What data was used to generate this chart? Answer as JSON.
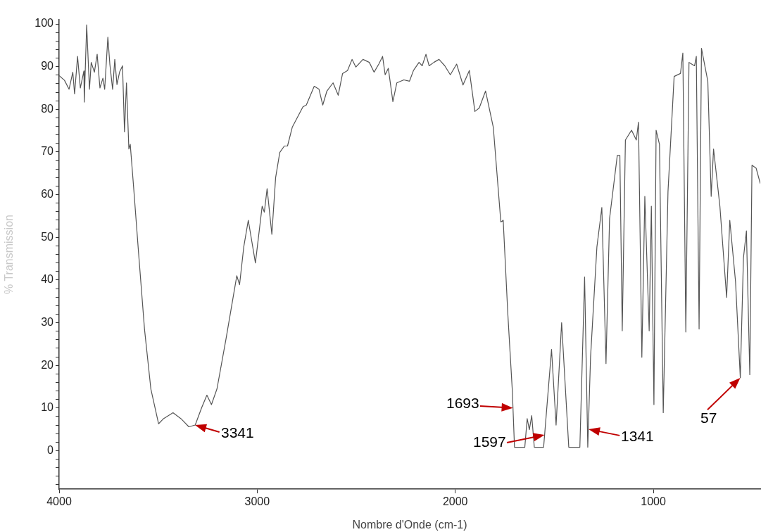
{
  "chart_data": {
    "type": "line",
    "xlabel": "Nombre d'Onde (cm-1)",
    "ylabel": "% Transmission",
    "xlim": [
      4000,
      460
    ],
    "xticks": [
      4000,
      3000,
      2000,
      1000
    ],
    "ylim": [
      -9,
      101
    ],
    "yticks": [
      {
        "value": -8,
        "label": null
      },
      {
        "value": -6,
        "label": null
      },
      {
        "value": -4,
        "label": null
      },
      {
        "value": -2,
        "label": null
      },
      0,
      {
        "value": 2,
        "label": null
      },
      {
        "value": 4,
        "label": null
      },
      {
        "value": 6,
        "label": null
      },
      {
        "value": 8,
        "label": null
      },
      10,
      {
        "value": 12,
        "label": null
      },
      {
        "value": 14,
        "label": null
      },
      {
        "value": 16,
        "label": null
      },
      {
        "value": 18,
        "label": null
      },
      20,
      {
        "value": 22,
        "label": null
      },
      {
        "value": 24,
        "label": null
      },
      {
        "value": 26,
        "label": null
      },
      {
        "value": 28,
        "label": null
      },
      30,
      {
        "value": 32,
        "label": null
      },
      {
        "value": 34,
        "label": null
      },
      {
        "value": 36,
        "label": null
      },
      {
        "value": 38,
        "label": null
      },
      40,
      {
        "value": 42,
        "label": null
      },
      {
        "value": 44,
        "label": null
      },
      {
        "value": 46,
        "label": null
      },
      {
        "value": 48,
        "label": null
      },
      50,
      {
        "value": 52,
        "label": null
      },
      {
        "value": 54,
        "label": null
      },
      {
        "value": 56,
        "label": null
      },
      {
        "value": 58,
        "label": null
      },
      60,
      {
        "value": 62,
        "label": null
      },
      {
        "value": 64,
        "label": null
      },
      {
        "value": 66,
        "label": null
      },
      {
        "value": 68,
        "label": null
      },
      70,
      {
        "value": 72,
        "label": null
      },
      {
        "value": 74,
        "label": null
      },
      {
        "value": 76,
        "label": null
      },
      {
        "value": 78,
        "label": null
      },
      80,
      {
        "value": 82,
        "label": null
      },
      {
        "value": 84,
        "label": null
      },
      {
        "value": 86,
        "label": null
      },
      {
        "value": 88,
        "label": null
      },
      90,
      {
        "value": 92,
        "label": null
      },
      {
        "value": 94,
        "label": null
      },
      {
        "value": 96,
        "label": null
      },
      {
        "value": 98,
        "label": null
      },
      100
    ],
    "grid": false,
    "legend": false,
    "x": [
      4000,
      3973,
      3950,
      3931,
      3922,
      3907,
      3893,
      3875,
      3873,
      3861,
      3847,
      3838,
      3822,
      3808,
      3794,
      3779,
      3770,
      3754,
      3744,
      3730,
      3719,
      3708,
      3695,
      3680,
      3670,
      3660,
      3648,
      3641,
      3624,
      3600,
      3569,
      3537,
      3498,
      3473,
      3425,
      3385,
      3345,
      3313,
      3281,
      3254,
      3231,
      3203,
      3157,
      3103,
      3089,
      3068,
      3045,
      3009,
      2975,
      2964,
      2950,
      2926,
      2907,
      2886,
      2863,
      2847,
      2823,
      2769,
      2752,
      2712,
      2688,
      2669,
      2648,
      2617,
      2591,
      2569,
      2544,
      2521,
      2502,
      2466,
      2434,
      2410,
      2386,
      2367,
      2354,
      2338,
      2315,
      2295,
      2260,
      2231,
      2211,
      2183,
      2167,
      2148,
      2132,
      2108,
      2082,
      2053,
      2025,
      1993,
      1961,
      1929,
      1901,
      1879,
      1847,
      1808,
      1770,
      1758,
      1735,
      1712,
      1701,
      1649,
      1637,
      1626,
      1614,
      1601,
      1554,
      1514,
      1491,
      1463,
      1427,
      1371,
      1347,
      1331,
      1317,
      1285,
      1260,
      1239,
      1221,
      1182,
      1169,
      1157,
      1141,
      1110,
      1086,
      1075,
      1058,
      1043,
      1021,
      1010,
      997,
      986,
      969,
      950,
      926,
      895,
      863,
      851,
      836,
      820,
      792,
      783,
      769,
      757,
      725,
      708,
      696,
      664,
      630,
      614,
      585,
      561,
      545,
      530,
      513,
      502,
      481,
      460
    ],
    "series": [
      {
        "color": "#555555",
        "values": [
          87.9,
          86.8,
          84.7,
          88.7,
          83.6,
          92.4,
          85,
          89,
          81.7,
          99.8,
          84.7,
          91,
          88.7,
          92.9,
          85,
          87.3,
          84.7,
          96.9,
          90.6,
          84.7,
          91.7,
          85.8,
          88.7,
          90.2,
          74.7,
          86.2,
          70.7,
          71.8,
          61.8,
          47,
          28.5,
          14.5,
          6.3,
          7.5,
          8.9,
          7.5,
          5.6,
          6,
          10,
          13,
          10.8,
          14.5,
          26.3,
          41,
          38.9,
          47.7,
          54,
          44,
          57.3,
          55.9,
          61.4,
          50.7,
          64,
          69.9,
          71.4,
          71.4,
          75.8,
          80.6,
          81,
          85.4,
          84.7,
          81,
          84.3,
          86.2,
          83.3,
          88.4,
          89.1,
          91.7,
          89.9,
          91.7,
          91,
          88.7,
          90.6,
          92.4,
          88.1,
          89.6,
          81.8,
          86.2,
          86.9,
          86.6,
          89.1,
          91,
          90.2,
          92.9,
          90.2,
          91,
          91.7,
          90.2,
          88.1,
          90.6,
          85.7,
          89.1,
          79.5,
          80.3,
          84.3,
          75.8,
          53.6,
          54,
          32.3,
          14.1,
          0.8,
          0.8,
          7.5,
          4.9,
          8.2,
          0.8,
          0.8,
          23.7,
          6,
          30,
          0.8,
          0.8,
          40.7,
          0.8,
          21.9,
          47.7,
          57,
          20.4,
          54.4,
          69.2,
          69.2,
          28.1,
          72.8,
          75.1,
          72.8,
          77,
          21.9,
          59.6,
          28.1,
          57.3,
          10.8,
          75.1,
          71.8,
          8.9,
          60.7,
          87.7,
          88.4,
          93.2,
          27.8,
          91,
          90.2,
          92.4,
          28.5,
          94.3,
          86.6,
          59.6,
          70.7,
          57.3,
          35.9,
          54,
          39.6,
          17.1,
          45.2,
          51.5,
          17.8,
          66.9,
          66.2,
          62.6
        ]
      }
    ],
    "annotations": [
      {
        "text": "3341",
        "x": 3313,
        "y": 6
      },
      {
        "text": "1693",
        "x": 1709,
        "y": 10
      },
      {
        "text": "1597",
        "x": 1549,
        "y": 3.7
      },
      {
        "text": "1341",
        "x": 1328,
        "y": 5
      },
      {
        "text": "57",
        "x": 561,
        "y": 17.1
      }
    ]
  }
}
